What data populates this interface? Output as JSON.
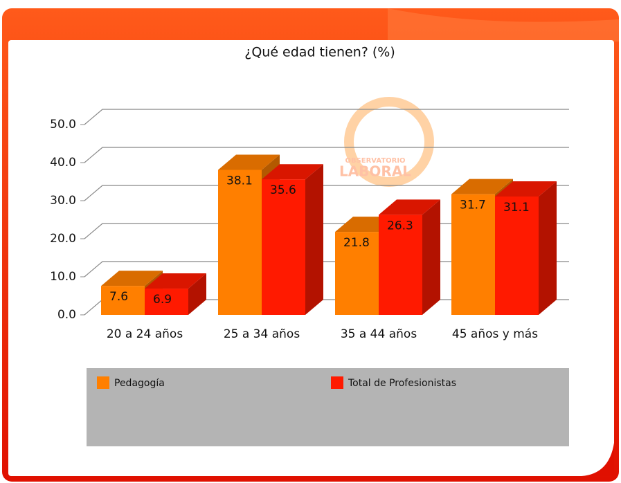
{
  "chart_data": {
    "type": "bar3d",
    "title": "¿Qué edad tienen? (%)",
    "categories": [
      "20 a 24 años",
      "25 a 34 años",
      "35 a 44 años",
      "45 años y más"
    ],
    "series": [
      {
        "name": "Pedagogía",
        "color": "#ff7f00",
        "values": [
          7.6,
          38.1,
          21.8,
          31.7
        ]
      },
      {
        "name": "Total de Profesionistas",
        "color": "#ff1a00",
        "values": [
          6.9,
          35.6,
          26.3,
          31.1
        ]
      }
    ],
    "ylim": [
      0,
      50
    ],
    "yticks": [
      {
        "value": 0,
        "label": "0.0"
      },
      {
        "value": 10,
        "label": "10.0"
      },
      {
        "value": 20,
        "label": "20.0"
      },
      {
        "value": 30,
        "label": "30.0"
      },
      {
        "value": 40,
        "label": "40.0"
      },
      {
        "value": 50,
        "label": "50.0"
      }
    ],
    "grid": true,
    "logo_text": [
      "OBSERVATORIO",
      "LABORAL"
    ]
  }
}
